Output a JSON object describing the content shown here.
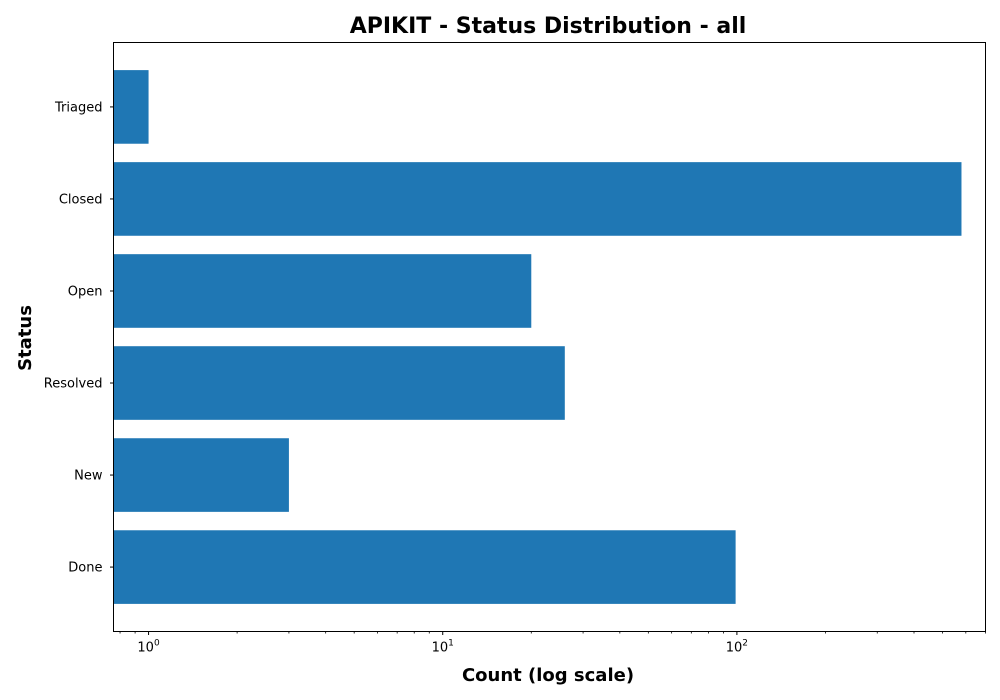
{
  "chart_data": {
    "type": "bar",
    "orientation": "horizontal",
    "title": "APIKIT - Status Distribution - all",
    "xlabel": "Count (log scale)",
    "ylabel": "Status",
    "x_scale": "log",
    "xlim": [
      0.76,
      700
    ],
    "categories": [
      "Done",
      "New",
      "Resolved",
      "Open",
      "Closed",
      "Triaged"
    ],
    "values": [
      99,
      3,
      26,
      20,
      580,
      1
    ],
    "x_major_ticks": [
      {
        "base": "10",
        "exp": "0",
        "value": 1
      },
      {
        "base": "10",
        "exp": "1",
        "value": 10
      },
      {
        "base": "10",
        "exp": "2",
        "value": 100
      }
    ],
    "bar_color": "#1f77b4",
    "grid": false
  }
}
